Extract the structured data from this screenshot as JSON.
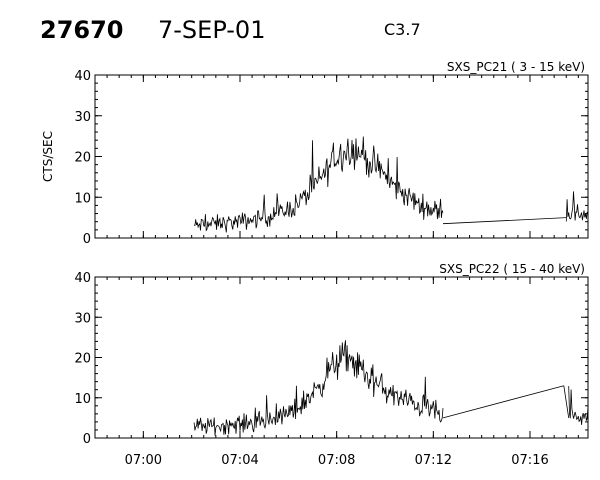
{
  "header": {
    "id": "27670",
    "date": "7-SEP-01",
    "flare_class": "C3.7"
  },
  "chart_data": [
    {
      "type": "line",
      "title": "SXS_PC21  (  3 - 15 keV)",
      "xlabel": "",
      "ylabel": "CTS/SEC",
      "xlim": [
        "06:58",
        "07:18:24"
      ],
      "ylim": [
        0,
        40
      ],
      "xticks": [
        "07:00",
        "07:04",
        "07:08",
        "07:12",
        "07:16"
      ],
      "yticks": [
        0,
        10,
        20,
        30,
        40
      ],
      "noise": 3.2,
      "series": [
        {
          "segments": [
            {
              "x": [
                "07:02:06",
                "07:03",
                "07:04",
                "07:05",
                "07:06",
                "07:06:30",
                "07:07",
                "07:07:30",
                "07:08",
                "07:08:30",
                "07:09",
                "07:09:30",
                "07:10",
                "07:10:30",
                "07:11",
                "07:11:30",
                "07:12",
                "07:12:24"
              ],
              "y": [
                3,
                3.5,
                4,
                5,
                7,
                9,
                12,
                16,
                20,
                22,
                21,
                18,
                15,
                12,
                10,
                8,
                7,
                6
              ]
            },
            {
              "x": [
                "07:12:24",
                "07:17:30"
              ],
              "y": [
                3.5,
                5
              ],
              "noise": 0
            },
            {
              "x": [
                "07:17:30",
                "07:18:24"
              ],
              "y": [
                6,
                6
              ]
            }
          ]
        }
      ]
    },
    {
      "type": "line",
      "title": "SXS_PC22  ( 15 - 40 keV)",
      "xlabel": "",
      "ylabel": "",
      "xlim": [
        "06:58",
        "07:18:24"
      ],
      "ylim": [
        0,
        40
      ],
      "xticks": [
        "07:00",
        "07:04",
        "07:08",
        "07:12",
        "07:16"
      ],
      "yticks": [
        0,
        10,
        20,
        30,
        40
      ],
      "noise": 3.4,
      "series": [
        {
          "segments": [
            {
              "x": [
                "07:02:06",
                "07:03",
                "07:04",
                "07:05",
                "07:06",
                "07:06:30",
                "07:07",
                "07:07:30",
                "07:08",
                "07:08:30",
                "07:09",
                "07:09:30",
                "07:10",
                "07:10:30",
                "07:11",
                "07:11:30",
                "07:12",
                "07:12:24"
              ],
              "y": [
                3,
                3,
                3.5,
                4,
                6,
                8,
                11,
                15,
                19,
                20,
                17,
                14,
                12,
                10,
                9,
                8,
                7,
                5
              ]
            },
            {
              "x": [
                "07:12:24",
                "07:17:24"
              ],
              "y": [
                5,
                13
              ],
              "noise": 0
            },
            {
              "x": [
                "07:17:24",
                "07:17:36"
              ],
              "y": [
                13,
                5
              ],
              "noise": 0
            },
            {
              "x": [
                "07:17:36",
                "07:18:24"
              ],
              "y": [
                5,
                5
              ]
            }
          ]
        }
      ]
    }
  ]
}
